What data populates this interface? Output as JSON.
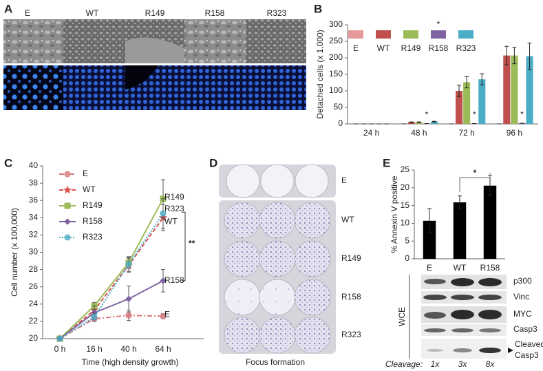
{
  "panel_letters": [
    "A",
    "B",
    "C",
    "D",
    "E"
  ],
  "panel_a": {
    "columns": [
      "E",
      "WT",
      "R149",
      "R158",
      "R323"
    ]
  },
  "chart_data": [
    {
      "type": "bar",
      "ylabel": "Detached cells (x 1,000)",
      "categories": [
        "24 h",
        "48 h",
        "72 h",
        "96 h"
      ],
      "series": [
        {
          "name": "E",
          "color": "#e6999b",
          "values": [
            0,
            0,
            0,
            0
          ],
          "errors": [
            0,
            0,
            0,
            0
          ]
        },
        {
          "name": "WT",
          "color": "#c0504d",
          "values": [
            0,
            5,
            100,
            207
          ],
          "errors": [
            0,
            1,
            17,
            28
          ]
        },
        {
          "name": "R149",
          "color": "#9bbb59",
          "values": [
            0,
            5,
            126,
            207
          ],
          "errors": [
            0,
            1,
            17,
            25
          ]
        },
        {
          "name": "R158",
          "color": "#8064a2",
          "values": [
            0,
            1,
            1,
            2
          ],
          "errors": [
            0,
            0,
            0,
            0
          ]
        },
        {
          "name": "R323",
          "color": "#4bacc6",
          "values": [
            0,
            7,
            135,
            205
          ],
          "errors": [
            0,
            1,
            17,
            40
          ]
        }
      ],
      "ylim": [
        0,
        300
      ],
      "yticks": [
        0,
        50,
        100,
        150,
        200,
        250,
        300
      ],
      "legend": "top",
      "annotations": [
        {
          "text": "*",
          "category": 1,
          "series": 3
        },
        {
          "text": "*",
          "category": 2,
          "series": 3
        },
        {
          "text": "*",
          "category": 3,
          "series": 3
        }
      ],
      "legend_annotation": {
        "text": "*",
        "series": 3
      }
    },
    {
      "type": "line",
      "xlabel": "Time (high density growth)",
      "ylabel": "Cell number  (x 100,000)",
      "categories": [
        "0 h",
        "16 h",
        "40 h",
        "64 h"
      ],
      "series": [
        {
          "name": "E",
          "color": "#d8787c",
          "marker": "circle",
          "dash": "dashdot",
          "values": [
            20,
            22.3,
            22.7,
            22.6
          ],
          "errors": [
            0,
            0.3,
            0.6,
            0.3
          ]
        },
        {
          "name": "WT",
          "color": "#d9534f",
          "marker": "star",
          "dash": "dash",
          "values": [
            20,
            23.3,
            28.5,
            34
          ],
          "errors": [
            0,
            0.5,
            0.8,
            1.5
          ]
        },
        {
          "name": "R149",
          "color": "#9bbb59",
          "marker": "square",
          "dash": "solid",
          "values": [
            20,
            23.8,
            28.8,
            36.2
          ],
          "errors": [
            0,
            0.4,
            0.7,
            2.2
          ]
        },
        {
          "name": "R158",
          "color": "#8064a2",
          "marker": "diamond",
          "dash": "solid",
          "values": [
            20,
            23,
            24.6,
            26.7
          ],
          "errors": [
            0,
            0.8,
            1.5,
            1.3
          ]
        },
        {
          "name": "R323",
          "color": "#4bacc6",
          "marker": "circle",
          "dash": "dot",
          "values": [
            20,
            22.5,
            28.6,
            34.5
          ],
          "errors": [
            0,
            0.5,
            0.8,
            1.7
          ]
        }
      ],
      "ylim": [
        20,
        40
      ],
      "yticks": [
        20,
        22,
        24,
        26,
        28,
        30,
        32,
        34,
        36,
        38,
        40
      ],
      "legend": "top-left",
      "end_labels": true,
      "significance": {
        "text": "**",
        "between": [
          1,
          3
        ]
      }
    },
    {
      "type": "bar",
      "ylabel": "% Annexin V positive",
      "categories": [
        "E",
        "WT",
        "R158"
      ],
      "values": [
        10.7,
        15.9,
        20.6
      ],
      "errors": [
        3.4,
        1.8,
        2.8
      ],
      "color": "#000000",
      "ylim": [
        0,
        25
      ],
      "yticks": [
        0,
        5,
        10,
        15,
        20,
        25
      ],
      "significance": {
        "text": "*",
        "between": [
          1,
          2
        ]
      }
    }
  ],
  "panel_d": {
    "rows": [
      "E",
      "WT",
      "R149",
      "R158",
      "R323"
    ],
    "xlabel": "Focus formation"
  },
  "panel_e_blot": {
    "side_label": "WCE",
    "rows": [
      "p300",
      "Vinc",
      "MYC",
      "Casp3"
    ],
    "cleaved_label": [
      "Cleaved",
      "Casp3"
    ],
    "cleavage_label": "Cleavage:",
    "cleavage": [
      "1x",
      "3x",
      "8x"
    ]
  }
}
